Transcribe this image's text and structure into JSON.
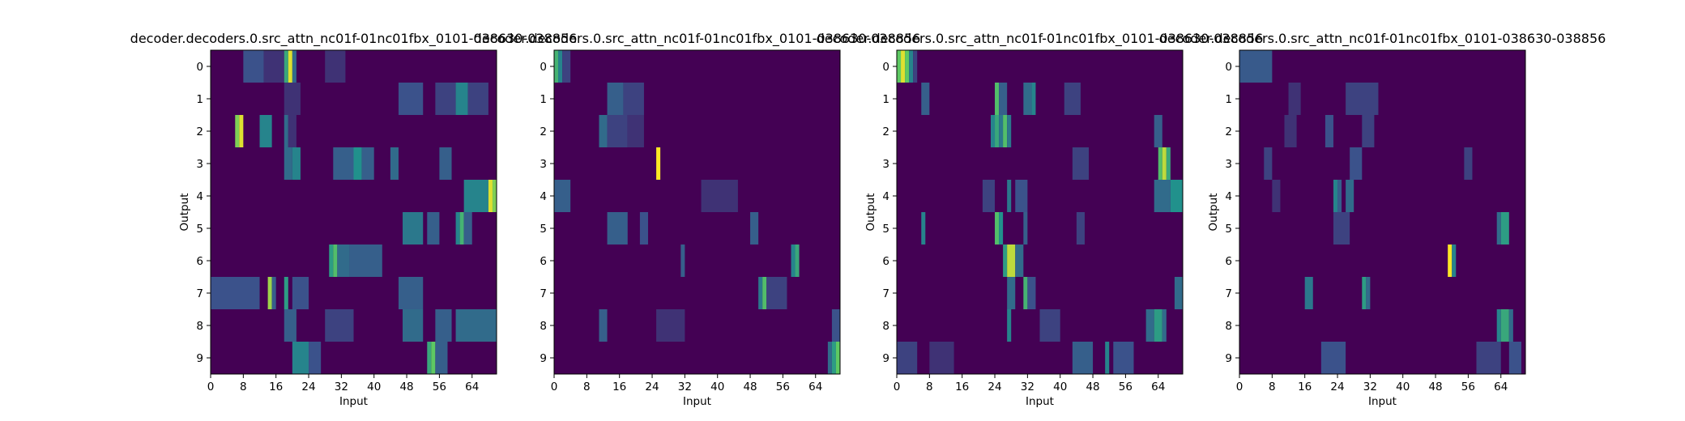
{
  "chart_data": [
    {
      "type": "heatmap",
      "title": "decoder.decoders.0.src_attn_nc01f-01nc01fbx_0101-038630-038856",
      "xlabel": "Input",
      "ylabel": "Output",
      "xlim": [
        0,
        70
      ],
      "ylim": [
        -0.5,
        9.5
      ],
      "xticks": [
        0,
        8,
        16,
        24,
        32,
        40,
        48,
        56,
        64
      ],
      "yticks": [
        0,
        1,
        2,
        3,
        4,
        5,
        6,
        7,
        8,
        9
      ],
      "colormap": "viridis",
      "grid": false,
      "rows": [
        [
          [
            8,
            13,
            0.25
          ],
          [
            13,
            18,
            0.15
          ],
          [
            18,
            19,
            0.6
          ],
          [
            19,
            20,
            0.95
          ],
          [
            20,
            21,
            0.35
          ],
          [
            28,
            33,
            0.15
          ]
        ],
        [
          [
            18,
            22,
            0.15
          ],
          [
            46,
            52,
            0.25
          ],
          [
            55,
            60,
            0.2
          ],
          [
            60,
            63,
            0.45
          ],
          [
            63,
            68,
            0.2
          ]
        ],
        [
          [
            6,
            7,
            0.8
          ],
          [
            7,
            8,
            0.95
          ],
          [
            12,
            15,
            0.45
          ],
          [
            18,
            19,
            0.35
          ],
          [
            19,
            21,
            0.15
          ]
        ],
        [
          [
            18,
            20,
            0.35
          ],
          [
            20,
            22,
            0.45
          ],
          [
            30,
            35,
            0.3
          ],
          [
            35,
            37,
            0.5
          ],
          [
            37,
            40,
            0.3
          ],
          [
            44,
            46,
            0.35
          ],
          [
            56,
            59,
            0.3
          ]
        ],
        [
          [
            62,
            68,
            0.45
          ],
          [
            68,
            69,
            0.95
          ],
          [
            69,
            70,
            0.8
          ]
        ],
        [
          [
            47,
            52,
            0.4
          ],
          [
            53,
            56,
            0.3
          ],
          [
            60,
            61,
            0.45
          ],
          [
            61,
            62,
            0.65
          ],
          [
            62,
            64,
            0.3
          ]
        ],
        [
          [
            29,
            30,
            0.55
          ],
          [
            30,
            31,
            0.7
          ],
          [
            31,
            34,
            0.35
          ],
          [
            34,
            42,
            0.3
          ]
        ],
        [
          [
            0,
            12,
            0.25
          ],
          [
            14,
            15,
            0.85
          ],
          [
            15,
            16,
            0.3
          ],
          [
            18,
            19,
            0.55
          ],
          [
            20,
            24,
            0.25
          ],
          [
            46,
            52,
            0.3
          ]
        ],
        [
          [
            18,
            21,
            0.3
          ],
          [
            28,
            35,
            0.2
          ],
          [
            47,
            52,
            0.35
          ],
          [
            55,
            59,
            0.3
          ],
          [
            60,
            70,
            0.35
          ]
        ],
        [
          [
            20,
            24,
            0.45
          ],
          [
            24,
            27,
            0.25
          ],
          [
            53,
            54,
            0.6
          ],
          [
            54,
            55,
            0.75
          ],
          [
            55,
            58,
            0.3
          ]
        ]
      ]
    },
    {
      "type": "heatmap",
      "title": "decoder.decoders.0.src_attn_nc01f-01nc01fbx_0101-038630-038856",
      "xlabel": "Input",
      "ylabel": "",
      "xlim": [
        0,
        70
      ],
      "ylim": [
        -0.5,
        9.5
      ],
      "xticks": [
        0,
        8,
        16,
        24,
        32,
        40,
        48,
        56,
        64
      ],
      "yticks": [
        0,
        1,
        2,
        3,
        4,
        5,
        6,
        7,
        8,
        9
      ],
      "colormap": "viridis",
      "grid": false,
      "rows": [
        [
          [
            0,
            1,
            0.65
          ],
          [
            1,
            2,
            0.45
          ],
          [
            2,
            4,
            0.2
          ]
        ],
        [
          [
            13,
            17,
            0.3
          ],
          [
            17,
            22,
            0.2
          ]
        ],
        [
          [
            11,
            13,
            0.35
          ],
          [
            13,
            18,
            0.2
          ],
          [
            18,
            22,
            0.15
          ]
        ],
        [
          [
            25,
            26,
            1.0
          ]
        ],
        [
          [
            0,
            4,
            0.3
          ],
          [
            36,
            45,
            0.15
          ]
        ],
        [
          [
            13,
            18,
            0.3
          ],
          [
            21,
            23,
            0.25
          ],
          [
            48,
            50,
            0.3
          ]
        ],
        [
          [
            31,
            32,
            0.3
          ],
          [
            58,
            59,
            0.45
          ],
          [
            59,
            60,
            0.6
          ]
        ],
        [
          [
            50,
            51,
            0.4
          ],
          [
            51,
            52,
            0.7
          ],
          [
            52,
            57,
            0.2
          ]
        ],
        [
          [
            11,
            13,
            0.3
          ],
          [
            25,
            32,
            0.15
          ],
          [
            68,
            70,
            0.25
          ]
        ],
        [
          [
            67,
            68,
            0.35
          ],
          [
            68,
            69,
            0.55
          ],
          [
            69,
            70,
            0.75
          ]
        ]
      ]
    },
    {
      "type": "heatmap",
      "title": "decoder.decoders.0.src_attn_nc01f-01nc01fbx_0101-038630-038856",
      "xlabel": "Input",
      "ylabel": "Output",
      "xlim": [
        0,
        70
      ],
      "ylim": [
        -0.5,
        9.5
      ],
      "xticks": [
        0,
        8,
        16,
        24,
        32,
        40,
        48,
        56,
        64
      ],
      "yticks": [
        0,
        1,
        2,
        3,
        4,
        5,
        6,
        7,
        8,
        9
      ],
      "colormap": "viridis",
      "grid": false,
      "rows": [
        [
          [
            0,
            1,
            0.75
          ],
          [
            1,
            2,
            0.95
          ],
          [
            2,
            3,
            0.75
          ],
          [
            3,
            4,
            0.45
          ],
          [
            4,
            5,
            0.2
          ]
        ],
        [
          [
            6,
            8,
            0.3
          ],
          [
            24,
            25,
            0.7
          ],
          [
            25,
            27,
            0.3
          ],
          [
            31,
            33,
            0.35
          ],
          [
            33,
            34,
            0.45
          ],
          [
            41,
            45,
            0.2
          ]
        ],
        [
          [
            23,
            24,
            0.45
          ],
          [
            24,
            25,
            0.6
          ],
          [
            25,
            26,
            0.4
          ],
          [
            26,
            27,
            0.7
          ],
          [
            27,
            28,
            0.4
          ],
          [
            63,
            65,
            0.3
          ]
        ],
        [
          [
            64,
            65,
            0.7
          ],
          [
            65,
            66,
            0.9
          ],
          [
            66,
            67,
            0.6
          ],
          [
            43,
            47,
            0.2
          ]
        ],
        [
          [
            21,
            24,
            0.2
          ],
          [
            27,
            28,
            0.4
          ],
          [
            29,
            32,
            0.25
          ],
          [
            63,
            67,
            0.35
          ],
          [
            67,
            70,
            0.5
          ]
        ],
        [
          [
            6,
            7,
            0.45
          ],
          [
            24,
            25,
            0.7
          ],
          [
            25,
            26,
            0.5
          ],
          [
            31,
            32,
            0.3
          ],
          [
            44,
            46,
            0.2
          ]
        ],
        [
          [
            26,
            27,
            0.55
          ],
          [
            27,
            29,
            0.9
          ],
          [
            29,
            31,
            0.35
          ]
        ],
        [
          [
            27,
            29,
            0.35
          ],
          [
            31,
            32,
            0.65
          ],
          [
            32,
            34,
            0.25
          ],
          [
            68,
            70,
            0.35
          ]
        ],
        [
          [
            27,
            28,
            0.45
          ],
          [
            35,
            40,
            0.2
          ],
          [
            61,
            63,
            0.35
          ],
          [
            63,
            65,
            0.55
          ],
          [
            65,
            66,
            0.35
          ]
        ],
        [
          [
            0,
            5,
            0.2
          ],
          [
            8,
            14,
            0.15
          ],
          [
            43,
            48,
            0.3
          ],
          [
            51,
            52,
            0.45
          ],
          [
            53,
            58,
            0.25
          ]
        ]
      ]
    },
    {
      "type": "heatmap",
      "title": "decoder.decoders.0.src_attn_nc01f-01nc01fbx_0101-038630-038856",
      "xlabel": "Input",
      "ylabel": "Output",
      "xlim": [
        0,
        70
      ],
      "ylim": [
        -0.5,
        9.5
      ],
      "xticks": [
        0,
        8,
        16,
        24,
        32,
        40,
        48,
        56,
        64
      ],
      "yticks": [
        0,
        1,
        2,
        3,
        4,
        5,
        6,
        7,
        8,
        9
      ],
      "colormap": "viridis",
      "grid": false,
      "rows": [
        [
          [
            0,
            8,
            0.28
          ]
        ],
        [
          [
            12,
            15,
            0.15
          ],
          [
            26,
            34,
            0.2
          ]
        ],
        [
          [
            11,
            14,
            0.15
          ],
          [
            21,
            23,
            0.25
          ],
          [
            30,
            33,
            0.2
          ]
        ],
        [
          [
            6,
            8,
            0.2
          ],
          [
            27,
            30,
            0.25
          ],
          [
            55,
            57,
            0.2
          ]
        ],
        [
          [
            8,
            10,
            0.15
          ],
          [
            23,
            24,
            0.45
          ],
          [
            24,
            25,
            0.3
          ],
          [
            26,
            28,
            0.35
          ]
        ],
        [
          [
            23,
            27,
            0.2
          ],
          [
            63,
            64,
            0.35
          ],
          [
            64,
            66,
            0.55
          ]
        ],
        [
          [
            51,
            52,
            1.0
          ],
          [
            52,
            53,
            0.45
          ]
        ],
        [
          [
            16,
            18,
            0.4
          ],
          [
            30,
            31,
            0.55
          ],
          [
            31,
            32,
            0.35
          ]
        ],
        [
          [
            63,
            64,
            0.45
          ],
          [
            64,
            66,
            0.6
          ],
          [
            66,
            67,
            0.35
          ]
        ],
        [
          [
            20,
            26,
            0.25
          ],
          [
            58,
            64,
            0.2
          ],
          [
            66,
            69,
            0.25
          ]
        ]
      ]
    }
  ]
}
